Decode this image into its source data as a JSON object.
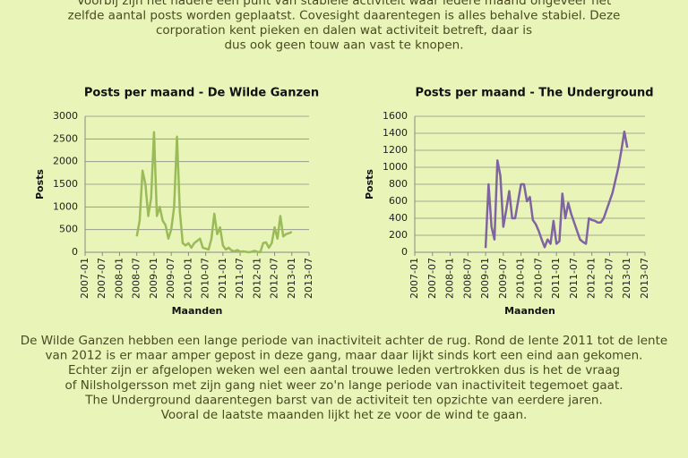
{
  "intro": {
    "lines": [
      "Voorbij zijn het nadere een punt van stabiele activiteit waar iedere maand ongeveer het",
      "zelfde aantal posts worden geplaatst. Covesight daarentegen is alles behalve stabiel. Deze",
      "corporation kent pieken en dalen wat activiteit betreft, daar is",
      "dus ook geen touw aan vast te knopen."
    ]
  },
  "chart_data": [
    {
      "type": "line",
      "title": "Posts per maand - De Wilde Ganzen",
      "x_label": "Maanden",
      "y_label": "Posts",
      "color": "#9bbb59",
      "x": [
        "2008-07",
        "2008-08",
        "2008-09",
        "2008-10",
        "2008-11",
        "2008-12",
        "2009-01",
        "2009-02",
        "2009-03",
        "2009-04",
        "2009-05",
        "2009-06",
        "2009-07",
        "2009-08",
        "2009-09",
        "2009-10",
        "2009-11",
        "2009-12",
        "2010-01",
        "2010-02",
        "2010-03",
        "2010-04",
        "2010-05",
        "2010-06",
        "2010-07",
        "2010-08",
        "2010-09",
        "2010-10",
        "2010-11",
        "2010-12",
        "2011-01",
        "2011-02",
        "2011-03",
        "2011-04",
        "2011-05",
        "2011-06",
        "2011-07",
        "2011-08",
        "2011-09",
        "2011-10",
        "2011-11",
        "2011-12",
        "2012-01",
        "2012-02",
        "2012-03",
        "2012-04",
        "2012-05",
        "2012-06",
        "2012-07",
        "2012-08",
        "2012-09",
        "2012-10",
        "2012-11",
        "2012-12",
        "2013-01"
      ],
      "values": [
        350,
        700,
        1800,
        1500,
        800,
        1200,
        2650,
        800,
        1000,
        700,
        600,
        300,
        500,
        1000,
        2550,
        900,
        200,
        150,
        200,
        100,
        200,
        250,
        300,
        100,
        80,
        60,
        300,
        850,
        400,
        550,
        150,
        60,
        100,
        40,
        20,
        50,
        10,
        20,
        10,
        0,
        10,
        30,
        10,
        0,
        200,
        220,
        100,
        200,
        550,
        300,
        800,
        350,
        400,
        420,
        450
      ],
      "xlim": [
        "2007-01",
        "2013-07"
      ],
      "xticks": [
        "2007-01",
        "2007-07",
        "2008-01",
        "2008-07",
        "2009-01",
        "2009-07",
        "2010-01",
        "2010-07",
        "2011-01",
        "2011-07",
        "2012-01",
        "2012-07",
        "2013-01",
        "2013-07"
      ],
      "ylim": [
        0,
        3000
      ],
      "yticks": [
        0,
        500,
        1000,
        1500,
        2000,
        2500,
        3000
      ],
      "grid": true
    },
    {
      "type": "line",
      "title": "Posts per maand - The Underground",
      "x_label": "Maanden",
      "y_label": "Posts",
      "color": "#8064a2",
      "x": [
        "2009-01",
        "2009-02",
        "2009-03",
        "2009-04",
        "2009-05",
        "2009-06",
        "2009-07",
        "2009-08",
        "2009-09",
        "2009-10",
        "2009-11",
        "2009-12",
        "2010-01",
        "2010-02",
        "2010-03",
        "2010-04",
        "2010-05",
        "2010-06",
        "2010-07",
        "2010-08",
        "2010-09",
        "2010-10",
        "2010-11",
        "2010-12",
        "2011-01",
        "2011-02",
        "2011-03",
        "2011-04",
        "2011-05",
        "2011-06",
        "2011-07",
        "2011-08",
        "2011-09",
        "2011-10",
        "2011-11",
        "2011-12",
        "2012-01",
        "2012-02",
        "2012-03",
        "2012-04",
        "2012-05",
        "2012-06",
        "2012-07",
        "2012-08",
        "2012-09",
        "2012-10",
        "2012-11",
        "2012-12",
        "2013-01"
      ],
      "values": [
        50,
        800,
        300,
        150,
        1080,
        900,
        300,
        500,
        720,
        400,
        400,
        600,
        800,
        800,
        600,
        650,
        380,
        330,
        250,
        150,
        60,
        150,
        100,
        370,
        100,
        130,
        690,
        400,
        580,
        450,
        350,
        250,
        150,
        120,
        100,
        400,
        380,
        370,
        350,
        350,
        400,
        500,
        600,
        700,
        850,
        1000,
        1200,
        1420,
        1230
      ],
      "xlim": [
        "2007-01",
        "2013-07"
      ],
      "xticks": [
        "2007-01",
        "2007-07",
        "2008-01",
        "2008-07",
        "2009-01",
        "2009-07",
        "2010-01",
        "2010-07",
        "2011-01",
        "2011-07",
        "2012-01",
        "2012-07",
        "2013-01",
        "2013-07"
      ],
      "ylim": [
        0,
        1600
      ],
      "yticks": [
        0,
        200,
        400,
        600,
        800,
        1000,
        1200,
        1400,
        1600
      ],
      "grid": true
    }
  ],
  "conclusion": {
    "lines": [
      "De Wilde Ganzen hebben een lange periode van inactiviteit achter de rug. Rond de lente 2011 tot de lente",
      "van 2012 is er maar amper gepost in deze gang, maar daar lijkt sinds kort een eind aan gekomen.",
      "Echter zijn er afgelopen weken wel een aantal trouwe leden vertrokken dus is het de vraag",
      "of Nilsholgersson met zijn gang niet weer zo'n lange periode van inactiviteit tegemoet gaat.",
      "The Underground daarentegen barst van de activiteit ten opzichte van eerdere jaren.",
      "Vooral de laatste maanden lijkt het ze voor de wind te gaan."
    ]
  }
}
